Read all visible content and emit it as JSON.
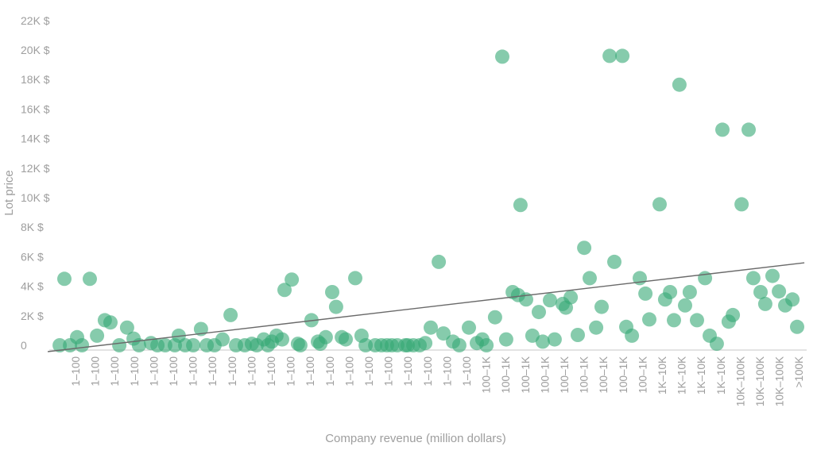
{
  "chart_data": {
    "type": "scatter",
    "title": "",
    "xlabel": "Company revenue (million dollars)",
    "ylabel": "Lot price",
    "point_color": "#35a875",
    "point_opacity": 0.6,
    "trend_color": "#6a6a6a",
    "axis_line_color": "#e3e3e3",
    "axis_text_color": "#9e9e9e",
    "grid": false,
    "legend": "none",
    "ylim": [
      0,
      22000
    ],
    "y_tick_step": 2000,
    "y_ticks": [
      "0",
      "2K $",
      "4K $",
      "6K $",
      "8K $",
      "10K $",
      "12K $",
      "14K $",
      "16K $",
      "18K $",
      "20K $",
      "22K $"
    ],
    "x_tick_labels": [
      "1–100",
      "1–100",
      "1–100",
      "1–100",
      "1–100",
      "1–100",
      "1–100",
      "1–100",
      "1–100",
      "1–100",
      "1–100",
      "1–100",
      "1–100",
      "1–100",
      "1–100",
      "1–100",
      "1–100",
      "1–100",
      "1–100",
      "1–100",
      "1–100",
      "100–1K",
      "100–1K",
      "100–1K",
      "100–1K",
      "100–1K",
      "100–1K",
      "100–1K",
      "100–1K",
      "100–1K",
      "1K–10K",
      "1K–10K",
      "1K–10K",
      "1K–10K",
      "10K–100K",
      "10K–100K",
      "10K–100K",
      ">100K"
    ],
    "points_format": "[x_column_position, lot_price_dollars]",
    "points": [
      [
        -0.81,
        0
      ],
      [
        -0.57,
        4500
      ],
      [
        -0.28,
        0
      ],
      [
        0.08,
        550
      ],
      [
        0.33,
        0
      ],
      [
        0.73,
        4500
      ],
      [
        1.1,
        650
      ],
      [
        1.5,
        1700
      ],
      [
        1.79,
        1550
      ],
      [
        2.24,
        0
      ],
      [
        2.64,
        1200
      ],
      [
        2.97,
        450
      ],
      [
        3.25,
        0
      ],
      [
        3.86,
        150
      ],
      [
        4.19,
        0
      ],
      [
        4.59,
        0
      ],
      [
        5.08,
        0
      ],
      [
        5.28,
        650
      ],
      [
        5.61,
        0
      ],
      [
        6.02,
        0
      ],
      [
        6.42,
        1100
      ],
      [
        6.71,
        0
      ],
      [
        7.11,
        0
      ],
      [
        7.52,
        400
      ],
      [
        7.93,
        2050
      ],
      [
        8.21,
        0
      ],
      [
        8.66,
        0
      ],
      [
        9.02,
        100
      ],
      [
        9.27,
        0
      ],
      [
        9.63,
        400
      ],
      [
        9.84,
        0
      ],
      [
        10.04,
        250
      ],
      [
        10.28,
        650
      ],
      [
        10.57,
        400
      ],
      [
        10.69,
        3750
      ],
      [
        11.06,
        4450
      ],
      [
        11.38,
        100
      ],
      [
        11.5,
        0
      ],
      [
        12.07,
        1700
      ],
      [
        12.4,
        250
      ],
      [
        12.52,
        100
      ],
      [
        12.8,
        550
      ],
      [
        13.13,
        3600
      ],
      [
        13.33,
        2600
      ],
      [
        13.62,
        550
      ],
      [
        13.82,
        400
      ],
      [
        14.31,
        4550
      ],
      [
        14.63,
        650
      ],
      [
        14.84,
        0
      ],
      [
        15.33,
        0
      ],
      [
        15.65,
        0
      ],
      [
        15.93,
        0
      ],
      [
        16.18,
        0
      ],
      [
        16.46,
        0
      ],
      [
        16.87,
        0
      ],
      [
        16.99,
        0
      ],
      [
        17.28,
        0
      ],
      [
        17.6,
        0
      ],
      [
        17.89,
        150
      ],
      [
        18.17,
        1200
      ],
      [
        18.58,
        5650
      ],
      [
        18.82,
        800
      ],
      [
        19.31,
        250
      ],
      [
        19.63,
        0
      ],
      [
        20.12,
        1200
      ],
      [
        20.53,
        150
      ],
      [
        20.81,
        400
      ],
      [
        21.02,
        0
      ],
      [
        21.46,
        1900
      ],
      [
        21.83,
        19550
      ],
      [
        22.03,
        400
      ],
      [
        22.36,
        3600
      ],
      [
        22.64,
        3400
      ],
      [
        22.76,
        9500
      ],
      [
        23.05,
        3100
      ],
      [
        23.37,
        650
      ],
      [
        23.7,
        2250
      ],
      [
        23.9,
        250
      ],
      [
        24.27,
        3050
      ],
      [
        24.51,
        400
      ],
      [
        24.92,
        2800
      ],
      [
        25.08,
        2550
      ],
      [
        25.33,
        3250
      ],
      [
        25.69,
        700
      ],
      [
        26.02,
        6600
      ],
      [
        26.3,
        4550
      ],
      [
        26.63,
        1200
      ],
      [
        26.91,
        2600
      ],
      [
        27.32,
        19600
      ],
      [
        27.56,
        5650
      ],
      [
        27.97,
        19600
      ],
      [
        28.17,
        1250
      ],
      [
        28.46,
        650
      ],
      [
        28.86,
        4550
      ],
      [
        29.15,
        3500
      ],
      [
        29.35,
        1750
      ],
      [
        29.88,
        9550
      ],
      [
        30.16,
        3100
      ],
      [
        30.41,
        3600
      ],
      [
        30.61,
        1700
      ],
      [
        30.89,
        17650
      ],
      [
        31.18,
        2700
      ],
      [
        31.42,
        3600
      ],
      [
        31.79,
        1700
      ],
      [
        32.2,
        4550
      ],
      [
        32.44,
        650
      ],
      [
        32.8,
        100
      ],
      [
        33.09,
        14600
      ],
      [
        33.41,
        1600
      ],
      [
        33.62,
        2050
      ],
      [
        34.07,
        9550
      ],
      [
        34.43,
        14600
      ],
      [
        34.67,
        4550
      ],
      [
        35.04,
        3600
      ],
      [
        35.28,
        2800
      ],
      [
        35.65,
        4700
      ],
      [
        35.98,
        3650
      ],
      [
        36.3,
        2700
      ],
      [
        36.67,
        3100
      ],
      [
        36.91,
        1250
      ]
    ],
    "trend_line": {
      "x1": -1.42,
      "y1": -430,
      "x2": 37.28,
      "y2": 5590
    }
  }
}
